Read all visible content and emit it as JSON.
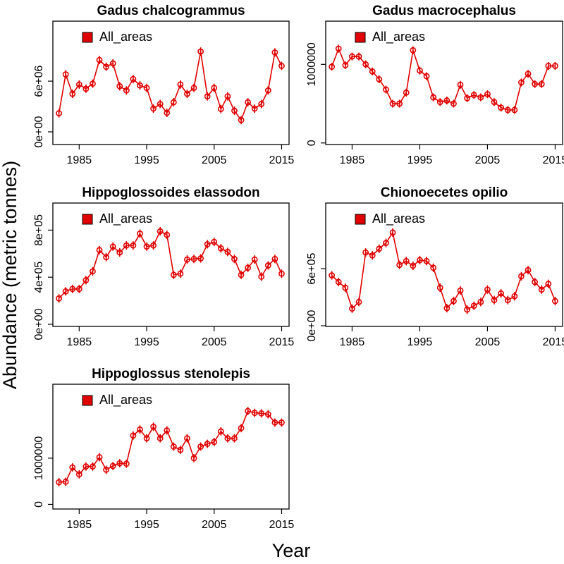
{
  "ylabel": "Abundance (metric tonnes)",
  "xlabel": "Year",
  "chart_data": [
    {
      "type": "line",
      "title": "Gadus chalcogrammus",
      "x": [
        1982,
        1983,
        1984,
        1985,
        1986,
        1987,
        1988,
        1989,
        1990,
        1991,
        1992,
        1993,
        1994,
        1995,
        1996,
        1997,
        1998,
        1999,
        2000,
        2001,
        2002,
        2003,
        2004,
        2005,
        2006,
        2007,
        2008,
        2009,
        2010,
        2011,
        2012,
        2013,
        2014,
        2015
      ],
      "series": [
        {
          "name": "All_areas",
          "color": "#e00000",
          "values": [
            2200000,
            6800000,
            4500000,
            5600000,
            5100000,
            5700000,
            8500000,
            7700000,
            8100000,
            5400000,
            4900000,
            6250000,
            5500000,
            5200000,
            2750000,
            3300000,
            2250000,
            3500000,
            5600000,
            4500000,
            5200000,
            9500000,
            4200000,
            5200000,
            2700000,
            4200000,
            2500000,
            1400000,
            3500000,
            2750000,
            3300000,
            4900000,
            9400000,
            7800000
          ],
          "errors": [
            500000,
            500000,
            500000,
            500000,
            500000,
            500000,
            500000,
            500000,
            500000,
            500000,
            500000,
            500000,
            500000,
            500000,
            500000,
            500000,
            500000,
            500000,
            500000,
            500000,
            500000,
            500000,
            500000,
            500000,
            500000,
            500000,
            500000,
            500000,
            500000,
            500000,
            500000,
            500000,
            500000,
            500000
          ]
        }
      ],
      "xlim": [
        1981.1,
        2016.1
      ],
      "xticks": [
        1985,
        1995,
        2005,
        2015
      ],
      "ylim": [
        -1500000,
        13100000
      ],
      "yticks": [
        {
          "value": 0,
          "label": "0e+00"
        },
        {
          "value": 6000000,
          "label": "6e+06"
        }
      ],
      "legend": "top-left"
    },
    {
      "type": "line",
      "title": "Gadus macrocephalus",
      "x": [
        1982,
        1983,
        1984,
        1985,
        1986,
        1987,
        1988,
        1989,
        1990,
        1991,
        1992,
        1993,
        1994,
        1995,
        1996,
        1997,
        1998,
        1999,
        2000,
        2001,
        2002,
        2003,
        2004,
        2005,
        2006,
        2007,
        2008,
        2009,
        2010,
        2011,
        2012,
        2013,
        2014,
        2015
      ],
      "series": [
        {
          "name": "All_areas",
          "color": "#e00000",
          "values": [
            970000,
            1200000,
            990000,
            1100000,
            1100000,
            1000000,
            910000,
            810000,
            680000,
            500000,
            500000,
            640000,
            1180000,
            920000,
            850000,
            580000,
            520000,
            540000,
            500000,
            740000,
            570000,
            610000,
            580000,
            620000,
            520000,
            450000,
            420000,
            420000,
            770000,
            880000,
            750000,
            750000,
            980000,
            980000
          ],
          "errors": [
            50000,
            50000,
            50000,
            50000,
            50000,
            50000,
            50000,
            50000,
            50000,
            50000,
            50000,
            50000,
            50000,
            50000,
            50000,
            50000,
            50000,
            50000,
            50000,
            50000,
            50000,
            50000,
            50000,
            50000,
            50000,
            50000,
            50000,
            50000,
            50000,
            50000,
            50000,
            50000,
            50000,
            50000
          ]
        }
      ],
      "xlim": [
        1981.1,
        2016.1
      ],
      "xticks": [
        1985,
        1995,
        2005,
        2015
      ],
      "ylim": [
        -20000,
        1550000
      ],
      "yticks": [
        0,
        1000000
      ],
      "legend": "top-left"
    },
    {
      "type": "line",
      "title": "Hippoglossoides elassodon",
      "x": [
        1982,
        1983,
        1984,
        1985,
        1986,
        1987,
        1988,
        1989,
        1990,
        1991,
        1992,
        1993,
        1994,
        1995,
        1996,
        1997,
        1998,
        1999,
        2000,
        2001,
        2002,
        2003,
        2004,
        2005,
        2006,
        2007,
        2008,
        2009,
        2010,
        2011,
        2012,
        2013,
        2014,
        2015
      ],
      "series": [
        {
          "name": "All_areas",
          "color": "#e00000",
          "values": [
            220000,
            280000,
            300000,
            300000,
            375000,
            450000,
            630000,
            570000,
            660000,
            610000,
            670000,
            670000,
            770000,
            660000,
            670000,
            790000,
            760000,
            420000,
            430000,
            550000,
            555000,
            560000,
            680000,
            700000,
            645000,
            615000,
            555000,
            420000,
            480000,
            550000,
            405000,
            500000,
            555000,
            430000
          ],
          "errors": [
            36000,
            36000,
            36000,
            36000,
            36000,
            36000,
            36000,
            36000,
            36000,
            36000,
            36000,
            36000,
            36000,
            36000,
            36000,
            36000,
            36000,
            36000,
            36000,
            36000,
            36000,
            36000,
            36000,
            36000,
            36000,
            36000,
            36000,
            36000,
            36000,
            36000,
            36000,
            36000,
            36000,
            36000
          ]
        }
      ],
      "xlim": [
        1981.1,
        2016.1
      ],
      "xticks": [
        1985,
        1995,
        2005,
        2015
      ],
      "ylim": [
        -18000,
        1030000
      ],
      "yticks": [
        {
          "value": 0,
          "label": "0e+00"
        },
        {
          "value": 400000,
          "label": "4e+05"
        },
        {
          "value": 800000,
          "label": "8e+05"
        }
      ],
      "legend": "top-left"
    },
    {
      "type": "line",
      "title": "Chionoecetes opilio",
      "x": [
        1982,
        1983,
        1984,
        1985,
        1986,
        1987,
        1988,
        1989,
        1990,
        1991,
        1992,
        1993,
        1994,
        1995,
        1996,
        1997,
        1998,
        1999,
        2000,
        2001,
        2002,
        2003,
        2004,
        2005,
        2006,
        2007,
        2008,
        2009,
        2010,
        2011,
        2012,
        2013,
        2014,
        2015
      ],
      "series": [
        {
          "name": "All_areas",
          "color": "#e00000",
          "values": [
            530000,
            460000,
            400000,
            180000,
            250000,
            770000,
            740000,
            810000,
            870000,
            980000,
            640000,
            680000,
            630000,
            690000,
            680000,
            610000,
            400000,
            185000,
            260000,
            370000,
            170000,
            210000,
            250000,
            380000,
            270000,
            340000,
            270000,
            310000,
            520000,
            585000,
            460000,
            380000,
            440000,
            260000
          ],
          "errors": [
            45000,
            45000,
            45000,
            45000,
            45000,
            45000,
            45000,
            45000,
            45000,
            45000,
            45000,
            45000,
            45000,
            45000,
            45000,
            45000,
            45000,
            45000,
            45000,
            45000,
            45000,
            45000,
            45000,
            45000,
            45000,
            45000,
            45000,
            45000,
            45000,
            45000,
            45000,
            45000,
            45000,
            45000
          ]
        }
      ],
      "xlim": [
        1981.1,
        2016.1
      ],
      "xticks": [
        1985,
        1995,
        2005,
        2015
      ],
      "ylim": [
        -7000,
        1290000
      ],
      "yticks": [
        {
          "value": 0,
          "label": "0e+00"
        },
        {
          "value": 600000,
          "label": "6e+05"
        }
      ],
      "legend": "top-left"
    },
    {
      "type": "line",
      "title": "Hippoglossus stenolepis",
      "x": [
        1982,
        1983,
        1984,
        1985,
        1986,
        1987,
        1988,
        1989,
        1990,
        1991,
        1992,
        1993,
        1994,
        1995,
        1996,
        1997,
        1998,
        1999,
        2000,
        2001,
        2002,
        2003,
        2004,
        2005,
        2006,
        2007,
        2008,
        2009,
        2010,
        2011,
        2012,
        2013,
        2014,
        2015
      ],
      "series": [
        {
          "name": "All_areas",
          "color": "#e00000",
          "values": [
            480000,
            490000,
            800000,
            650000,
            820000,
            820000,
            1020000,
            750000,
            830000,
            890000,
            880000,
            1490000,
            1620000,
            1430000,
            1680000,
            1430000,
            1600000,
            1250000,
            1180000,
            1430000,
            1000000,
            1250000,
            1310000,
            1350000,
            1580000,
            1430000,
            1430000,
            1650000,
            2020000,
            1980000,
            1970000,
            1950000,
            1770000,
            1770000
          ],
          "errors": [
            90000,
            90000,
            90000,
            90000,
            90000,
            90000,
            90000,
            90000,
            90000,
            90000,
            90000,
            90000,
            90000,
            90000,
            90000,
            90000,
            90000,
            90000,
            90000,
            90000,
            90000,
            90000,
            90000,
            90000,
            90000,
            90000,
            90000,
            90000,
            90000,
            90000,
            90000,
            90000,
            90000,
            90000
          ]
        }
      ],
      "xlim": [
        1981.1,
        2016.1
      ],
      "xticks": [
        1985,
        1995,
        2005,
        2015
      ],
      "ylim": [
        -100000,
        2600000
      ],
      "yticks": [
        0,
        1000000
      ],
      "legend": "top-left"
    }
  ]
}
